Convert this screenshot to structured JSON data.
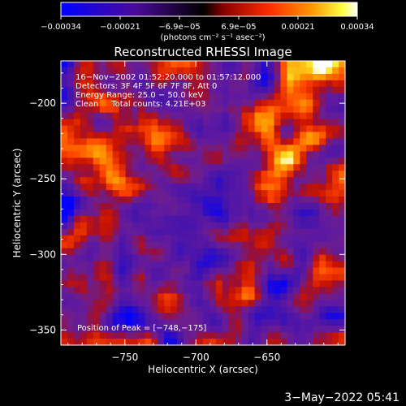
{
  "chart_data": {
    "type": "heatmap",
    "title": "Reconstructed RHESSI Image",
    "xlabel": "Heliocentric X (arcsec)",
    "ylabel": "Heliocentric Y (arcsec)",
    "xlim": [
      -795,
      -595
    ],
    "ylim": [
      -360,
      -172
    ],
    "x_ticks": [
      -750,
      -700,
      -650
    ],
    "y_ticks": [
      -350,
      -300,
      -250,
      -200
    ],
    "x_tick_labels": [
      "−750",
      "−700",
      "−650"
    ],
    "y_tick_labels": [
      "−350",
      "−300",
      "−250",
      "−200"
    ],
    "colorbar": {
      "range": [
        -0.00034,
        0.00034
      ],
      "tick_labels": [
        "−0.00034",
        "−0.00021",
        "−6.9e−05",
        "6.9e−05",
        "0.00021",
        "0.00034"
      ],
      "unit_label": "(photons cm⁻² s⁻¹ asec⁻²)"
    },
    "annotations": [
      "16−Nov−2002 01:52:20.000 to 01:57:12.000",
      "Detectors: 3F 4F 5F 6F 7F 8F, Att 0",
      "Energy Range: 25.0 − 50.0 keV",
      "Clean     Total counts: 4.21E+03"
    ],
    "peak_label": "Position of Peak = [−748,−175]",
    "peak_position": [
      -748,
      -175
    ],
    "total_counts": 4210,
    "energy_range_kev": [
      25.0,
      50.0
    ],
    "grid": false,
    "colors": [
      "#0000ff",
      "#3b0a8f",
      "#5a1a8c",
      "#8a1a6a",
      "#c21500",
      "#ff3a00",
      "#ff8c00",
      "#ffe000",
      "#ffffff"
    ]
  },
  "timestamp": "3−May−2022 05:41"
}
